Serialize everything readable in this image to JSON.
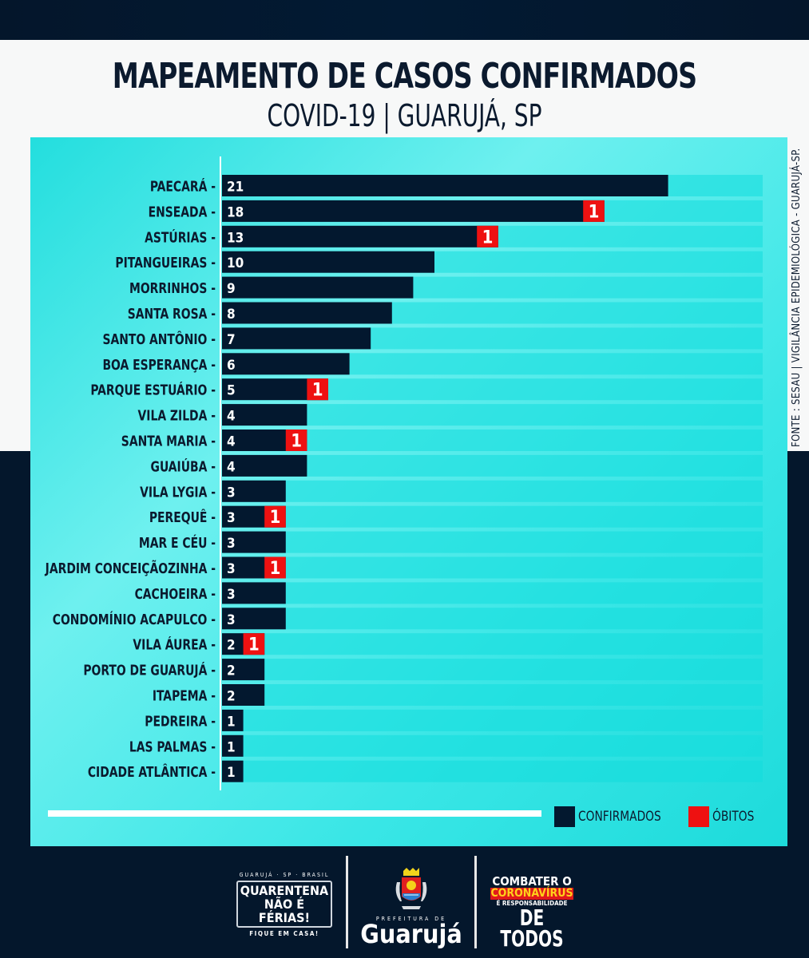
{
  "header": {
    "title": "MAPEAMENTO DE CASOS CONFIRMADOS",
    "subtitle": "COVID-19 | GUARUJÁ, SP"
  },
  "source": "FONTE : SESAU | VIGILÂNCIA EPIDEMIOLÓGICA - GUARUJÁ-SP.",
  "colors": {
    "confirmados": "#03182f",
    "obitos": "#ee1111",
    "panel": "#3ee6e6",
    "track": "#0adcdc",
    "text_dark": "#0b1a2e"
  },
  "legend": {
    "confirmados_label": "CONFIRMADOS",
    "obitos_label": "ÓBITOS"
  },
  "footer": {
    "badge_top": "GUARUJÁ · SP · BRASIL",
    "badge_line1": "QUARENTENA",
    "badge_line2": "NÃO É FÉRIAS!",
    "badge_bottom": "FIQUE EM CASA!",
    "logo_prefix": "PREFEITURA DE",
    "logo_name": "Guarujá",
    "slogan_1": "COMBATER O",
    "slogan_2": "CORONAVÍRUS",
    "slogan_3": "É RESPONSABILIDADE",
    "slogan_4": "DE TODOS"
  },
  "chart_data": {
    "type": "bar",
    "orientation": "horizontal",
    "title": "MAPEAMENTO DE CASOS CONFIRMADOS",
    "subtitle": "COVID-19 | GUARUJÁ, SP",
    "xlabel": "",
    "ylabel": "",
    "xlim": [
      0,
      25
    ],
    "grid": false,
    "legend_position": "bottom-right",
    "categories": [
      "PAECARÁ",
      "ENSEADA",
      "ASTÚRIAS",
      "PITANGUEIRAS",
      "MORRINHOS",
      "SANTA ROSA",
      "SANTO ANTÔNIO",
      "BOA ESPERANÇA",
      "PARQUE ESTUÁRIO",
      "VILA ZILDA",
      "SANTA MARIA",
      "GUAIÚBA",
      "VILA LYGIA",
      "PEREQUÊ",
      "MAR E CÉU",
      "JARDIM CONCEIÇÃOZINHA",
      "CACHOEIRA",
      "CONDOMÍNIO ACAPULCO",
      "VILA ÁUREA",
      "PORTO DE GUARUJÁ",
      "ITAPEMA",
      "PEDREIRA",
      "LAS PALMAS",
      "CIDADE ATLÂNTICA"
    ],
    "series": [
      {
        "name": "CONFIRMADOS",
        "values": [
          21,
          18,
          13,
          10,
          9,
          8,
          7,
          6,
          5,
          4,
          4,
          4,
          3,
          3,
          3,
          3,
          3,
          3,
          2,
          2,
          2,
          1,
          1,
          1
        ]
      },
      {
        "name": "ÓBITOS",
        "values": [
          0,
          1,
          1,
          0,
          0,
          0,
          0,
          0,
          1,
          0,
          1,
          0,
          0,
          1,
          0,
          1,
          0,
          0,
          1,
          0,
          0,
          0,
          0,
          0
        ]
      }
    ]
  }
}
